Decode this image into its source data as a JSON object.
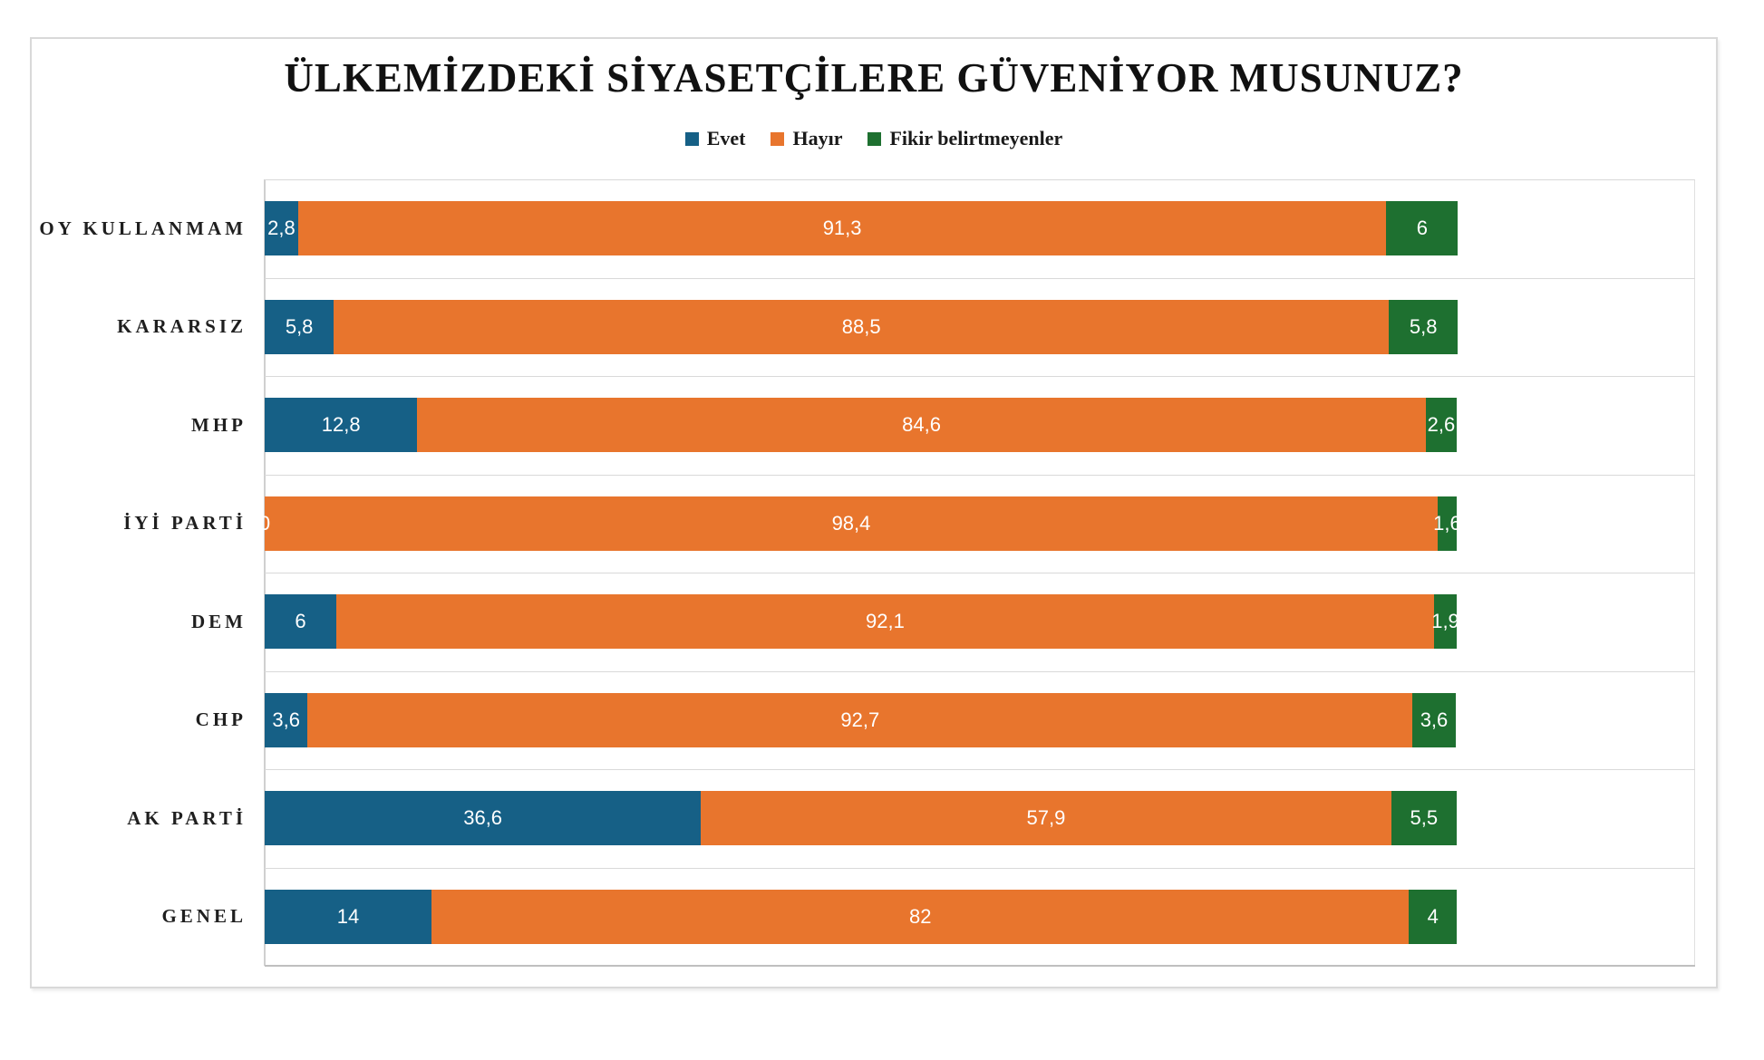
{
  "chart_data": {
    "type": "bar",
    "orientation": "horizontal-stacked",
    "title": "ÜLKEMİZDEKİ SİYASETÇİLERE GÜVENİYOR MUSUNUZ?",
    "categories": [
      "OY KULLANMAM",
      "KARARSIZ",
      "MHP",
      "İYİ PARTİ",
      "DEM",
      "CHP",
      "AK PARTİ",
      "GENEL"
    ],
    "series": [
      {
        "name": "Evet",
        "color": "#166086",
        "values": [
          2.8,
          5.8,
          12.8,
          0,
          6,
          3.6,
          36.6,
          14
        ],
        "labels": [
          "2,8",
          "5,8",
          "12,8",
          "0",
          "6",
          "3,6",
          "36,6",
          "14"
        ]
      },
      {
        "name": "Hayır",
        "color": "#E8752D",
        "values": [
          91.3,
          88.5,
          84.6,
          98.4,
          92.1,
          92.7,
          57.9,
          82
        ],
        "labels": [
          "91,3",
          "88,5",
          "84,6",
          "98,4",
          "92,1",
          "92,7",
          "57,9",
          "82"
        ]
      },
      {
        "name": "Fikir belirtmeyenler",
        "color": "#1E7030",
        "values": [
          6,
          5.8,
          2.6,
          1.6,
          1.9,
          3.6,
          5.5,
          4
        ],
        "labels": [
          "6",
          "5,8",
          "2,6",
          "1,6",
          "1,9",
          "3,6",
          "5,5",
          "4"
        ]
      }
    ],
    "xlim": [
      0,
      120
    ],
    "grid": true,
    "legend_position": "top",
    "data_labels": "inside-center, white"
  },
  "ui_colors": {
    "background": "#FFFFFF",
    "frame_border": "#D9D9D9",
    "gridline": "#D9D9D9",
    "bottom_axis": "#BFBFBF",
    "category_text": "#1F1F1F",
    "title_text": "#111111",
    "value_text": "#FFFFFF"
  }
}
